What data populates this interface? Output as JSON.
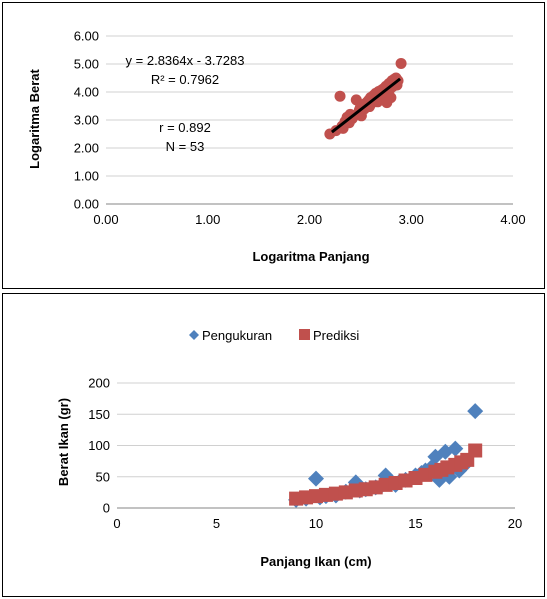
{
  "chart_data": [
    {
      "type": "scatter",
      "title": "",
      "xlabel": "Logaritma Panjang",
      "ylabel": "Logaritma  Berat",
      "xlim": [
        0,
        4
      ],
      "ylim": [
        0,
        6
      ],
      "x_ticks": [
        "0.00",
        "1.00",
        "2.00",
        "3.00",
        "4.00"
      ],
      "y_ticks": [
        "0.00",
        "1.00",
        "2.00",
        "3.00",
        "4.00",
        "5.00",
        "6.00"
      ],
      "grid": "horizontal",
      "legend": "none",
      "marker_color": "#C0504D",
      "trendline_color": "#000000",
      "annotations": {
        "equation": "y = 2.8364x - 3.7283",
        "r_squared": "R² = 0.7962",
        "r": "r = 0.892",
        "n": "N = 53"
      },
      "trendline": {
        "slope": 2.8364,
        "intercept": -3.7283,
        "x_range": [
          2.22,
          2.89
        ]
      },
      "points": [
        [
          2.2,
          2.5
        ],
        [
          2.26,
          2.62
        ],
        [
          2.3,
          3.85
        ],
        [
          2.32,
          2.78
        ],
        [
          2.33,
          2.7
        ],
        [
          2.35,
          2.95
        ],
        [
          2.37,
          3.1
        ],
        [
          2.39,
          2.9
        ],
        [
          2.4,
          3.2
        ],
        [
          2.42,
          3.05
        ],
        [
          2.44,
          3.15
        ],
        [
          2.46,
          3.72
        ],
        [
          2.48,
          3.25
        ],
        [
          2.49,
          3.35
        ],
        [
          2.5,
          3.45
        ],
        [
          2.51,
          3.15
        ],
        [
          2.52,
          3.55
        ],
        [
          2.54,
          3.4
        ],
        [
          2.55,
          3.5
        ],
        [
          2.56,
          3.62
        ],
        [
          2.58,
          3.7
        ],
        [
          2.59,
          3.48
        ],
        [
          2.6,
          3.8
        ],
        [
          2.61,
          3.6
        ],
        [
          2.62,
          3.75
        ],
        [
          2.63,
          3.88
        ],
        [
          2.64,
          3.7
        ],
        [
          2.65,
          3.95
        ],
        [
          2.66,
          3.82
        ],
        [
          2.67,
          3.65
        ],
        [
          2.68,
          4.02
        ],
        [
          2.69,
          3.9
        ],
        [
          2.7,
          4.05
        ],
        [
          2.71,
          3.95
        ],
        [
          2.72,
          4.1
        ],
        [
          2.73,
          3.85
        ],
        [
          2.74,
          4.15
        ],
        [
          2.75,
          4.2
        ],
        [
          2.76,
          4.0
        ],
        [
          2.77,
          4.25
        ],
        [
          2.78,
          4.3
        ],
        [
          2.79,
          4.1
        ],
        [
          2.8,
          4.35
        ],
        [
          2.81,
          4.4
        ],
        [
          2.82,
          4.2
        ],
        [
          2.83,
          4.45
        ],
        [
          2.84,
          4.3
        ],
        [
          2.85,
          4.5
        ],
        [
          2.86,
          4.25
        ],
        [
          2.87,
          4.4
        ],
        [
          2.8,
          3.8
        ],
        [
          2.76,
          3.62
        ],
        [
          2.9,
          5.02
        ]
      ]
    },
    {
      "type": "scatter",
      "title": "",
      "xlabel": "Panjang Ikan (cm)",
      "ylabel": "Berat Ikan (gr)",
      "xlim": [
        0,
        20
      ],
      "ylim": [
        0,
        200
      ],
      "x_ticks": [
        "0",
        "5",
        "10",
        "15",
        "20"
      ],
      "y_ticks": [
        "0",
        "50",
        "100",
        "150",
        "200"
      ],
      "grid": "horizontal",
      "legend": "top",
      "series": [
        {
          "name": "Pengukuran",
          "marker": "diamond",
          "color": "#4F81BD",
          "points": [
            [
              9,
              13
            ],
            [
              9.5,
              15
            ],
            [
              10,
              47
            ],
            [
              10.2,
              17
            ],
            [
              10.5,
              19
            ],
            [
              11,
              20
            ],
            [
              11.5,
              26
            ],
            [
              12,
              41
            ],
            [
              12.2,
              28
            ],
            [
              12.5,
              30
            ],
            [
              13,
              33
            ],
            [
              13.3,
              36
            ],
            [
              13.5,
              52
            ],
            [
              14,
              37
            ],
            [
              14.2,
              42
            ],
            [
              14.5,
              45
            ],
            [
              15,
              52
            ],
            [
              15.3,
              56
            ],
            [
              15.5,
              60
            ],
            [
              15.8,
              65
            ],
            [
              16,
              82
            ],
            [
              16.2,
              45
            ],
            [
              16.5,
              90
            ],
            [
              16.7,
              50
            ],
            [
              17,
              95
            ],
            [
              17.2,
              60
            ],
            [
              17.5,
              70
            ],
            [
              18,
              155
            ]
          ]
        },
        {
          "name": "Prediksi",
          "marker": "square",
          "color": "#C0504D",
          "points": [
            [
              9,
              15
            ],
            [
              9.5,
              17
            ],
            [
              10,
              19
            ],
            [
              10.5,
              21
            ],
            [
              11,
              23
            ],
            [
              11.5,
              25
            ],
            [
              12,
              28
            ],
            [
              12.5,
              30
            ],
            [
              13,
              33
            ],
            [
              13.5,
              37
            ],
            [
              14,
              40
            ],
            [
              14.5,
              44
            ],
            [
              15,
              48
            ],
            [
              15.5,
              53
            ],
            [
              16,
              58
            ],
            [
              16.3,
              61
            ],
            [
              16.6,
              65
            ],
            [
              17,
              69
            ],
            [
              17.3,
              73
            ],
            [
              17.6,
              77
            ],
            [
              18,
              92
            ]
          ]
        }
      ]
    }
  ]
}
